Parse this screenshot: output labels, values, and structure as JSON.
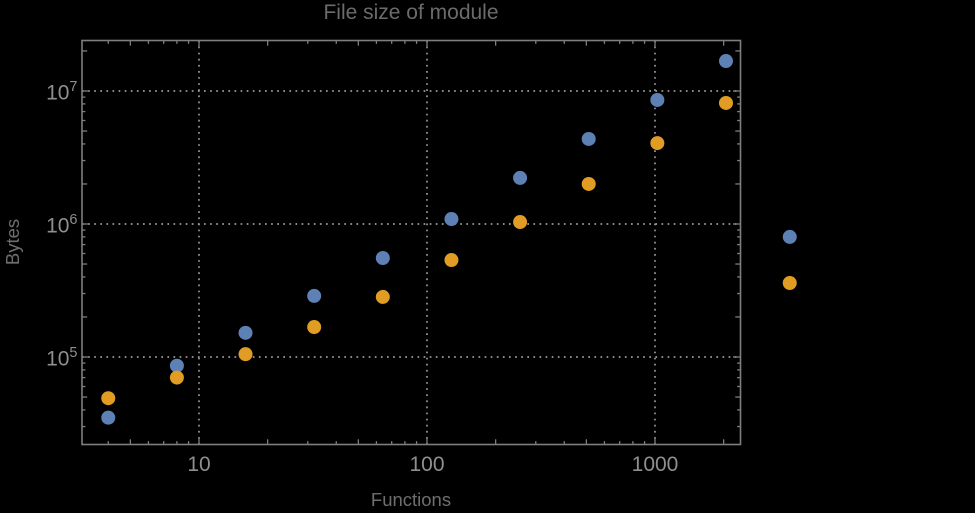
{
  "chart_data": {
    "type": "scatter",
    "title": "File size of module",
    "xlabel": "Functions",
    "ylabel": "Bytes",
    "x_scale": "log",
    "y_scale": "log",
    "grid": true,
    "legend": "none",
    "x_plot_range": [
      3,
      2400
    ],
    "y_plot_range": [
      22000,
      24000000
    ],
    "x_ticks": [
      {
        "value": 10,
        "label": "10"
      },
      {
        "value": 100,
        "label": "100"
      },
      {
        "value": 1000,
        "label": "1000"
      }
    ],
    "y_ticks": [
      {
        "value": 100000,
        "base": "10",
        "exp": "5"
      },
      {
        "value": 1000000,
        "base": "10",
        "exp": "6"
      },
      {
        "value": 10000000,
        "base": "10",
        "exp": "7"
      }
    ],
    "series": [
      {
        "name": "blue",
        "color": "#5E81B5",
        "points": [
          [
            4,
            35000
          ],
          [
            8,
            86000
          ],
          [
            16,
            152000
          ],
          [
            32,
            288000
          ],
          [
            64,
            555000
          ],
          [
            128,
            1090000
          ],
          [
            256,
            2220000
          ],
          [
            512,
            4360000
          ],
          [
            1024,
            8560000
          ],
          [
            2048,
            16800000
          ],
          [
            3900,
            800000
          ]
        ]
      },
      {
        "name": "orange",
        "color": "#E19C24",
        "points": [
          [
            4,
            49000
          ],
          [
            8,
            70000
          ],
          [
            16,
            105000
          ],
          [
            32,
            168000
          ],
          [
            64,
            283000
          ],
          [
            128,
            536000
          ],
          [
            256,
            1035000
          ],
          [
            512,
            2000000
          ],
          [
            1024,
            4060000
          ],
          [
            2048,
            8130000
          ],
          [
            3900,
            360000
          ]
        ]
      }
    ]
  },
  "colors": {
    "background": "#000000",
    "frame": "#7e7e7e",
    "grid": "#9a9a9a",
    "tick_label": "#8f8f8f",
    "title_label": "#6b6b6b",
    "axis_label": "#6e6e6e",
    "series_blue": "#5E81B5",
    "series_orange": "#E19C24"
  }
}
